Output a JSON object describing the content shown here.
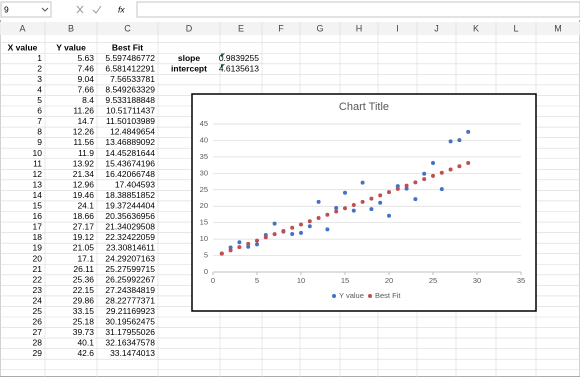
{
  "formula_bar": {
    "name_box": "9",
    "fx": "fx"
  },
  "columns": [
    "A",
    "B",
    "C",
    "D",
    "E",
    "F",
    "G",
    "H",
    "I",
    "J",
    "K",
    "L",
    "M"
  ],
  "table": {
    "header": [
      "X value",
      "Y value",
      "Best Fit"
    ],
    "rows": [
      [
        1,
        5.63,
        5.597486772
      ],
      [
        2,
        7.46,
        6.581412291
      ],
      [
        3,
        9.04,
        7.56533781
      ],
      [
        4,
        7.66,
        8.549263329
      ],
      [
        5,
        8.4,
        9.533188848
      ],
      [
        6,
        11.26,
        10.51711437
      ],
      [
        7,
        14.7,
        11.50103989
      ],
      [
        8,
        12.26,
        12.4849654
      ],
      [
        9,
        11.56,
        13.46889092
      ],
      [
        10,
        11.9,
        14.45281644
      ],
      [
        11,
        13.92,
        15.43674196
      ],
      [
        12,
        21.34,
        16.42066748
      ],
      [
        13,
        12.96,
        17.404593
      ],
      [
        14,
        19.46,
        18.38851852
      ],
      [
        15,
        24.1,
        19.37244404
      ],
      [
        16,
        18.66,
        20.35636956
      ],
      [
        17,
        27.17,
        21.34029508
      ],
      [
        18,
        19.12,
        22.32422059
      ],
      [
        19,
        21.05,
        23.30814611
      ],
      [
        20,
        17.1,
        24.29207163
      ],
      [
        21,
        26.11,
        25.27599715
      ],
      [
        22,
        25.36,
        26.25992267
      ],
      [
        23,
        22.15,
        27.24384819
      ],
      [
        24,
        29.86,
        28.22777371
      ],
      [
        25,
        33.15,
        29.21169923
      ],
      [
        26,
        25.18,
        30.19562475
      ],
      [
        27,
        39.73,
        31.17955026
      ],
      [
        28,
        40.1,
        32.16347578
      ],
      [
        29,
        42.6,
        33.1474013
      ]
    ]
  },
  "stats": {
    "rows": [
      [
        "slope",
        0.9839255
      ],
      [
        "intercept",
        4.6135613
      ]
    ]
  },
  "chart": {
    "type": "scatter",
    "title": "Chart Title",
    "xlim": [
      0,
      35
    ],
    "xticks": [
      0,
      5,
      10,
      15,
      20,
      25,
      30,
      35
    ],
    "ylim": [
      0,
      45
    ],
    "yticks": [
      0,
      5,
      10,
      15,
      20,
      25,
      30,
      35,
      40,
      45
    ],
    "grid": true,
    "series": [
      {
        "name": "Y value",
        "color": "#4472c4"
      },
      {
        "name": "Best Fit",
        "color": "#c0504d"
      }
    ]
  }
}
